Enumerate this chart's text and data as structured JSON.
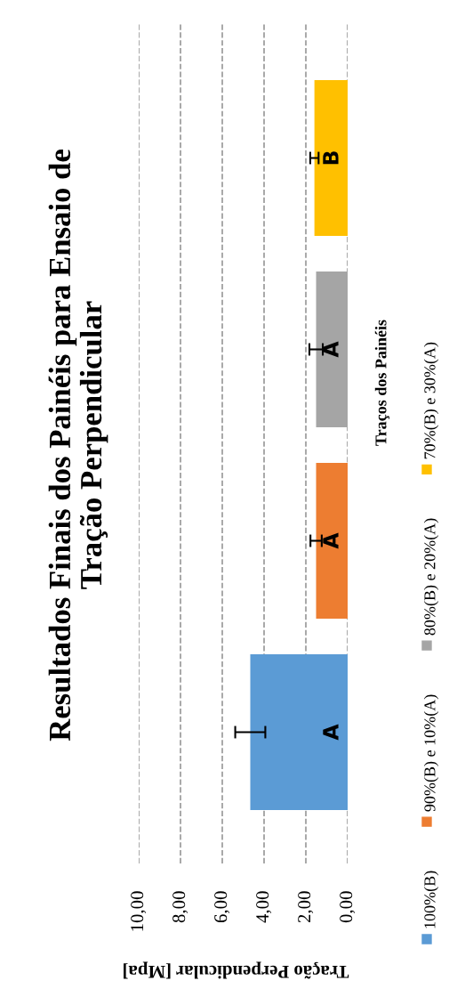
{
  "chart_data": {
    "type": "bar",
    "orientation": "horizontal",
    "title": "Resultados Finais dos Painéis para Ensaio de Tração Perpendicular",
    "xlabel": "Tração Perpendicular [Mpa]",
    "ylabel": "Traços dos Painéis",
    "categories": [
      null
    ],
    "series": [
      {
        "name": "100%(B)",
        "color": "#5b9bd5",
        "values": [
          4.66
        ],
        "errors": [
          0.72
        ],
        "value_labels": [
          "A"
        ]
      },
      {
        "name": "90%(B) e 10%(A)",
        "color": "#ed7d31",
        "values": [
          1.51
        ],
        "errors": [
          0.27
        ],
        "value_labels": [
          "A"
        ]
      },
      {
        "name": "80%(B) e 20%(A)",
        "color": "#a5a5a5",
        "values": [
          1.51
        ],
        "errors": [
          0.32
        ],
        "value_labels": [
          "A"
        ]
      },
      {
        "name": "70%(B) e 30%(A)",
        "color": "#ffc000",
        "values": [
          1.59
        ],
        "errors": [
          0.2
        ],
        "value_labels": [
          "B"
        ]
      }
    ],
    "xlim": [
      10,
      0
    ],
    "xticks": [
      {
        "value": 0,
        "label": "0,00"
      },
      {
        "value": 2,
        "label": "2,00"
      },
      {
        "value": 4,
        "label": "4,00"
      },
      {
        "value": 6,
        "label": "6,00"
      },
      {
        "value": 8,
        "label": "8,00"
      },
      {
        "value": 10,
        "label": "10,00"
      }
    ],
    "grid": "x",
    "legend": "right"
  }
}
